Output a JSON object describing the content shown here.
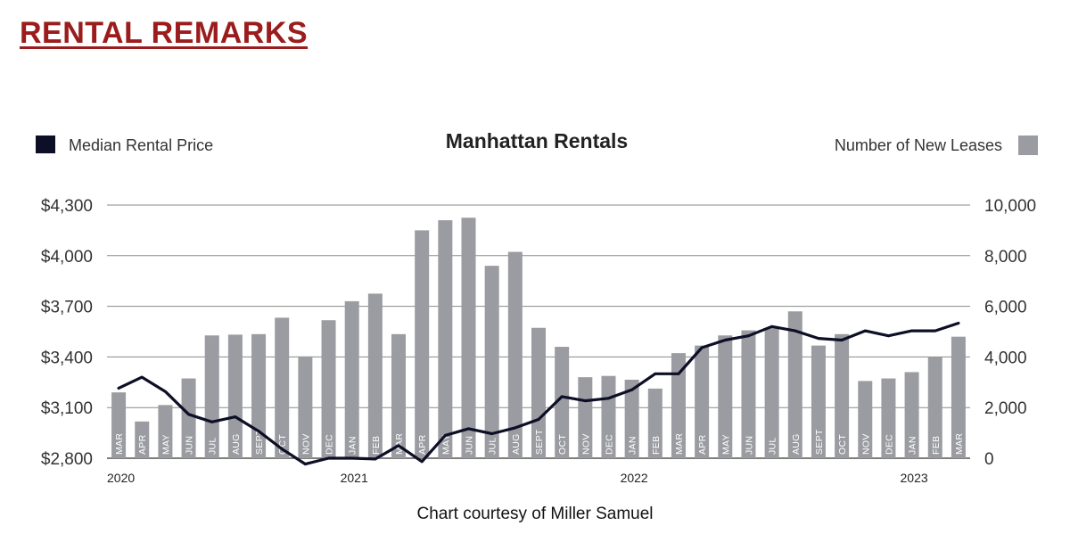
{
  "page": {
    "heading": "RENTAL REMARKS",
    "caption": "Chart courtesy of Miller Samuel"
  },
  "chart_data": {
    "type": "bar+line",
    "title": "Manhattan Rentals",
    "legend": {
      "line_label": "Median Rental Price",
      "bar_label": "Number of New Leases",
      "line_placement": "top-left",
      "bar_placement": "top-right"
    },
    "categories": [
      "MAR",
      "APR",
      "MAY",
      "JUN",
      "JUL",
      "AUG",
      "SEPT",
      "OCT",
      "NOV",
      "DEC",
      "JAN",
      "FEB",
      "MAR",
      "APR",
      "MAY",
      "JUN",
      "JUL",
      "AUG",
      "SEPT",
      "OCT",
      "NOV",
      "DEC",
      "JAN",
      "FEB",
      "MAR",
      "APR",
      "MAY",
      "JUN",
      "JUL",
      "AUG",
      "SEPT",
      "OCT",
      "NOV",
      "DEC",
      "JAN",
      "FEB",
      "MAR"
    ],
    "year_labels": [
      {
        "label": "2020",
        "index": 0
      },
      {
        "label": "2021",
        "index": 10
      },
      {
        "label": "2022",
        "index": 22
      },
      {
        "label": "2023",
        "index": 34
      }
    ],
    "series": [
      {
        "name": "Median Rental Price",
        "kind": "line",
        "axis": "left",
        "color": "#0d0f26",
        "values": [
          3215,
          3280,
          3195,
          3060,
          3015,
          3045,
          2960,
          2855,
          2765,
          2800,
          2800,
          2795,
          2875,
          2780,
          2935,
          2975,
          2945,
          2980,
          3030,
          3165,
          3140,
          3155,
          3205,
          3300,
          3300,
          3455,
          3500,
          3525,
          3580,
          3555,
          3510,
          3500,
          3555,
          3525,
          3555,
          3555,
          3600
        ]
      },
      {
        "name": "Number of New Leases",
        "kind": "bar",
        "axis": "right",
        "color": "#9a9ca1",
        "values": [
          2600,
          1450,
          2100,
          3150,
          4850,
          4880,
          4900,
          5550,
          4020,
          5450,
          6200,
          6500,
          4900,
          9000,
          9400,
          9500,
          7600,
          8150,
          5150,
          4400,
          3200,
          3250,
          3100,
          2750,
          4150,
          4450,
          4850,
          5050,
          5150,
          5800,
          4450,
          4900,
          3050,
          3150,
          3400,
          3980,
          4800
        ]
      }
    ],
    "y_left": {
      "min": 2800,
      "max": 4300,
      "ticks": [
        "$2,800",
        "$3,100",
        "$3,400",
        "$3,700",
        "$4,000",
        "$4,300"
      ]
    },
    "y_right": {
      "min": 0,
      "max": 10000,
      "ticks": [
        "0",
        "2,000",
        "4,000",
        "6,000",
        "8,000",
        "10,000"
      ]
    },
    "grid": true
  }
}
